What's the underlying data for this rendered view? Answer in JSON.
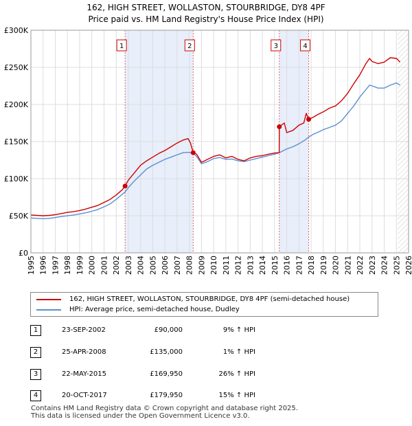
{
  "header": {
    "title": "162, HIGH STREET, WOLLASTON, STOURBRIDGE, DY8 4PF",
    "subtitle": "Price paid vs. HM Land Registry's House Price Index (HPI)"
  },
  "colors": {
    "property_line": "#cc0000",
    "hpi_line": "#5b8fd0",
    "shade": "#e8eefa",
    "grid": "#dddddd",
    "marker_line": "#e06666"
  },
  "chart_data": {
    "type": "line",
    "title": "Price paid vs. HM Land Registry's House Price Index (HPI)",
    "xlabel": "",
    "ylabel": "",
    "xlim": [
      1995,
      2026
    ],
    "ylim": [
      0,
      300000
    ],
    "x_ticks": [
      1995,
      1996,
      1997,
      1998,
      1999,
      2000,
      2001,
      2002,
      2003,
      2004,
      2005,
      2006,
      2007,
      2008,
      2009,
      2010,
      2011,
      2012,
      2013,
      2014,
      2015,
      2016,
      2017,
      2018,
      2019,
      2020,
      2021,
      2022,
      2023,
      2024,
      2025,
      2026
    ],
    "y_ticks": [
      {
        "value": 0,
        "label": "£0"
      },
      {
        "value": 50000,
        "label": "£50K"
      },
      {
        "value": 100000,
        "label": "£100K"
      },
      {
        "value": 150000,
        "label": "£150K"
      },
      {
        "value": 200000,
        "label": "£200K"
      },
      {
        "value": 250000,
        "label": "£250K"
      },
      {
        "value": 300000,
        "label": "£300K"
      }
    ],
    "grid": true,
    "shaded_ranges": [
      [
        2002.73,
        2008.32
      ],
      [
        2015.39,
        2017.8
      ]
    ],
    "future_hatch_start": 2025.1,
    "series": [
      {
        "name": "162, HIGH STREET, WOLLASTON, STOURBRIDGE, DY8 4PF (semi-detached house)",
        "color": "#cc0000",
        "points": [
          [
            1995.0,
            51000
          ],
          [
            1995.5,
            50500
          ],
          [
            1996.0,
            50000
          ],
          [
            1996.5,
            50500
          ],
          [
            1997.0,
            51500
          ],
          [
            1997.5,
            53000
          ],
          [
            1998.0,
            54500
          ],
          [
            1998.5,
            55500
          ],
          [
            1999.0,
            57000
          ],
          [
            1999.5,
            59000
          ],
          [
            2000.0,
            61500
          ],
          [
            2000.5,
            64000
          ],
          [
            2001.0,
            68000
          ],
          [
            2001.5,
            72000
          ],
          [
            2002.0,
            78000
          ],
          [
            2002.5,
            85000
          ],
          [
            2002.73,
            90000
          ],
          [
            2003.0,
            98000
          ],
          [
            2003.5,
            108000
          ],
          [
            2004.0,
            118000
          ],
          [
            2004.5,
            124000
          ],
          [
            2005.0,
            129000
          ],
          [
            2005.5,
            134000
          ],
          [
            2006.0,
            138000
          ],
          [
            2006.5,
            143000
          ],
          [
            2007.0,
            148000
          ],
          [
            2007.5,
            152000
          ],
          [
            2007.9,
            154000
          ],
          [
            2008.1,
            148000
          ],
          [
            2008.32,
            135000
          ],
          [
            2008.6,
            133000
          ],
          [
            2009.0,
            122000
          ],
          [
            2009.5,
            126000
          ],
          [
            2010.0,
            130000
          ],
          [
            2010.5,
            132000
          ],
          [
            2011.0,
            128000
          ],
          [
            2011.5,
            130000
          ],
          [
            2012.0,
            126000
          ],
          [
            2012.5,
            124000
          ],
          [
            2013.0,
            128000
          ],
          [
            2013.5,
            130000
          ],
          [
            2014.0,
            131000
          ],
          [
            2014.5,
            133000
          ],
          [
            2015.0,
            134500
          ],
          [
            2015.38,
            135000
          ],
          [
            2015.39,
            169950
          ],
          [
            2015.8,
            175000
          ],
          [
            2016.0,
            162000
          ],
          [
            2016.5,
            165000
          ],
          [
            2017.0,
            172000
          ],
          [
            2017.4,
            175000
          ],
          [
            2017.6,
            188000
          ],
          [
            2017.8,
            179950
          ],
          [
            2018.2,
            183000
          ],
          [
            2018.5,
            186000
          ],
          [
            2019.0,
            190000
          ],
          [
            2019.5,
            195000
          ],
          [
            2020.0,
            198000
          ],
          [
            2020.5,
            205000
          ],
          [
            2021.0,
            215000
          ],
          [
            2021.5,
            228000
          ],
          [
            2022.0,
            240000
          ],
          [
            2022.5,
            255000
          ],
          [
            2022.8,
            262000
          ],
          [
            2023.0,
            258000
          ],
          [
            2023.5,
            255000
          ],
          [
            2024.0,
            257000
          ],
          [
            2024.5,
            263000
          ],
          [
            2025.0,
            262000
          ],
          [
            2025.3,
            257000
          ]
        ]
      },
      {
        "name": "HPI: Average price, semi-detached house, Dudley",
        "color": "#5b8fd0",
        "points": [
          [
            1995.0,
            47000
          ],
          [
            1995.5,
            46500
          ],
          [
            1996.0,
            46000
          ],
          [
            1996.5,
            46500
          ],
          [
            1997.0,
            47500
          ],
          [
            1997.5,
            49000
          ],
          [
            1998.0,
            50000
          ],
          [
            1998.5,
            51000
          ],
          [
            1999.0,
            52500
          ],
          [
            1999.5,
            54000
          ],
          [
            2000.0,
            56000
          ],
          [
            2000.5,
            58500
          ],
          [
            2001.0,
            62000
          ],
          [
            2001.5,
            66000
          ],
          [
            2002.0,
            72000
          ],
          [
            2002.5,
            79000
          ],
          [
            2002.73,
            82000
          ],
          [
            2003.0,
            88000
          ],
          [
            2003.5,
            97000
          ],
          [
            2004.0,
            105000
          ],
          [
            2004.5,
            113000
          ],
          [
            2005.0,
            118000
          ],
          [
            2005.5,
            122000
          ],
          [
            2006.0,
            126000
          ],
          [
            2006.5,
            129000
          ],
          [
            2007.0,
            132000
          ],
          [
            2007.5,
            135000
          ],
          [
            2008.0,
            135500
          ],
          [
            2008.32,
            134000
          ],
          [
            2008.6,
            130000
          ],
          [
            2009.0,
            120000
          ],
          [
            2009.5,
            123000
          ],
          [
            2010.0,
            127000
          ],
          [
            2010.5,
            128500
          ],
          [
            2011.0,
            126000
          ],
          [
            2011.5,
            126500
          ],
          [
            2012.0,
            124000
          ],
          [
            2012.5,
            123000
          ],
          [
            2013.0,
            125000
          ],
          [
            2013.5,
            127000
          ],
          [
            2014.0,
            129000
          ],
          [
            2014.5,
            131000
          ],
          [
            2015.0,
            133000
          ],
          [
            2015.39,
            135000
          ],
          [
            2016.0,
            140000
          ],
          [
            2016.5,
            143000
          ],
          [
            2017.0,
            147000
          ],
          [
            2017.5,
            152000
          ],
          [
            2017.8,
            156000
          ],
          [
            2018.2,
            160000
          ],
          [
            2018.5,
            162000
          ],
          [
            2019.0,
            166000
          ],
          [
            2019.5,
            169000
          ],
          [
            2020.0,
            172000
          ],
          [
            2020.5,
            178000
          ],
          [
            2021.0,
            188000
          ],
          [
            2021.5,
            198000
          ],
          [
            2022.0,
            210000
          ],
          [
            2022.5,
            220000
          ],
          [
            2022.8,
            226000
          ],
          [
            2023.0,
            225000
          ],
          [
            2023.5,
            222000
          ],
          [
            2024.0,
            222000
          ],
          [
            2024.5,
            226000
          ],
          [
            2025.0,
            229000
          ],
          [
            2025.3,
            226000
          ]
        ]
      }
    ],
    "sale_markers": [
      {
        "label": "1",
        "x": 2002.73,
        "price": 90000
      },
      {
        "label": "2",
        "x": 2008.32,
        "price": 135000
      },
      {
        "label": "3",
        "x": 2015.39,
        "price": 169950
      },
      {
        "label": "4",
        "x": 2017.8,
        "price": 179950
      }
    ]
  },
  "legend": {
    "items": [
      {
        "label": "162, HIGH STREET, WOLLASTON, STOURBRIDGE, DY8 4PF (semi-detached house)",
        "color": "#cc0000"
      },
      {
        "label": "HPI: Average price, semi-detached house, Dudley",
        "color": "#5b8fd0"
      }
    ]
  },
  "sales": [
    {
      "num": "1",
      "date": "23-SEP-2002",
      "price": "£90,000",
      "hpi": "9% ↑ HPI"
    },
    {
      "num": "2",
      "date": "25-APR-2008",
      "price": "£135,000",
      "hpi": "1% ↑ HPI"
    },
    {
      "num": "3",
      "date": "22-MAY-2015",
      "price": "£169,950",
      "hpi": "26% ↑ HPI"
    },
    {
      "num": "4",
      "date": "20-OCT-2017",
      "price": "£179,950",
      "hpi": "15% ↑ HPI"
    }
  ],
  "footer": {
    "line1": "Contains HM Land Registry data © Crown copyright and database right 2025.",
    "line2": "This data is licensed under the Open Government Licence v3.0."
  }
}
